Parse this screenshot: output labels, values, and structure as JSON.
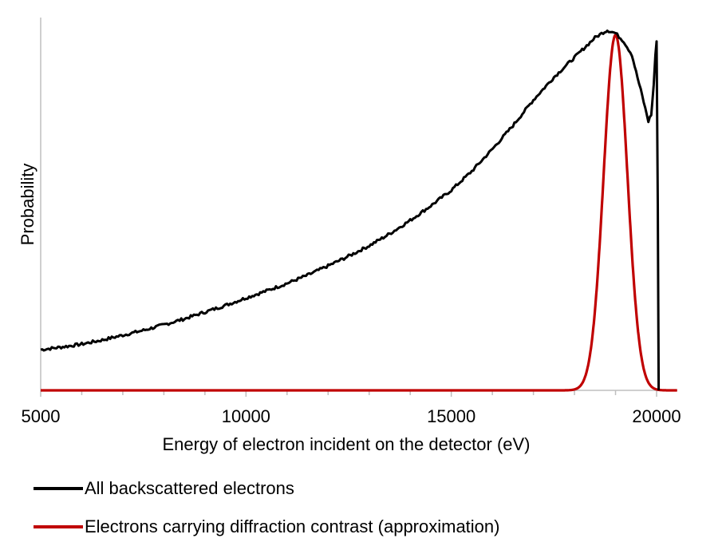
{
  "chart_data": {
    "type": "line",
    "title": "",
    "xlabel": "Energy of electron incident on the detector (eV)",
    "ylabel": "Probability",
    "xlim": [
      5000,
      20500
    ],
    "ylim": [
      0,
      1
    ],
    "x_ticks": [
      5000,
      10000,
      15000,
      20000
    ],
    "x_tick_labels": [
      "5000",
      "10000",
      "15000",
      "20000"
    ],
    "x_minor_step": 1000,
    "y_ticks_shown": false,
    "grid": false,
    "legend_position": "bottom",
    "series": [
      {
        "name": "All backscattered electrons",
        "color": "#000000",
        "x": [
          5000,
          5500,
          6000,
          6500,
          7000,
          7500,
          8000,
          8500,
          9000,
          9500,
          10000,
          10500,
          11000,
          11500,
          12000,
          12500,
          13000,
          13500,
          14000,
          14500,
          15000,
          15500,
          16000,
          16500,
          17000,
          17500,
          18000,
          18300,
          18500,
          18700,
          18800,
          19000,
          19200,
          19400,
          19500,
          19650,
          19800,
          19870,
          19930,
          19970,
          20000,
          20030,
          20050
        ],
        "values": [
          0.109,
          0.116,
          0.124,
          0.135,
          0.148,
          0.161,
          0.176,
          0.192,
          0.21,
          0.228,
          0.248,
          0.267,
          0.287,
          0.309,
          0.334,
          0.36,
          0.388,
          0.42,
          0.456,
          0.495,
          0.537,
          0.588,
          0.647,
          0.71,
          0.779,
          0.84,
          0.893,
          0.925,
          0.946,
          0.96,
          0.966,
          0.958,
          0.936,
          0.9,
          0.854,
          0.79,
          0.722,
          0.74,
          0.82,
          0.9,
          0.936,
          0.5,
          0.0
        ]
      },
      {
        "name": "Electrons carrying diffraction contrast (approximation)",
        "color": "#c00000",
        "model": "gaussian",
        "center": 19000,
        "sigma": 290,
        "peak": 0.953
      }
    ]
  }
}
